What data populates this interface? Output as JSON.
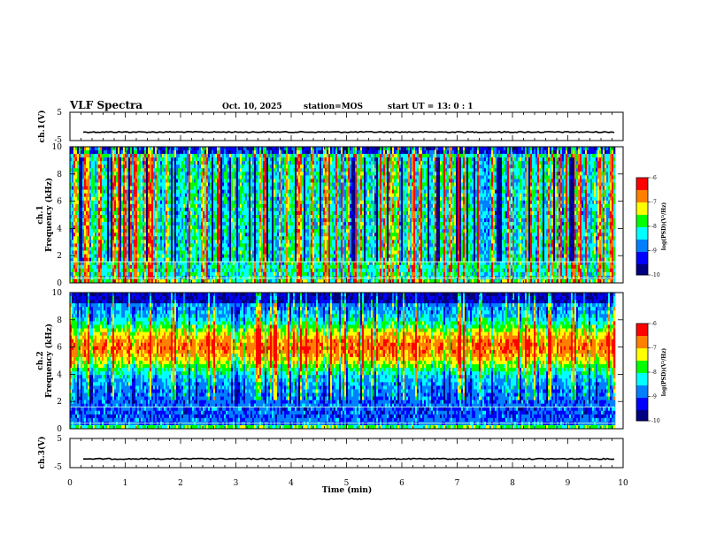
{
  "header": {
    "title": "VLF Spectra",
    "date": "Oct. 10, 2025",
    "station": "station=MOS",
    "start_ut": "start  UT =   13: 0  : 1"
  },
  "chart_data": [
    {
      "type": "line",
      "name": "ch1-waveform",
      "ylabel": "ch.1(V)",
      "ylim": [
        -5,
        5
      ],
      "yticks": [
        "5",
        "-5"
      ],
      "baseline_value": -2
    },
    {
      "type": "heatmap",
      "name": "ch1-spectrogram",
      "ylabel_channel": "ch.1",
      "ylabel": "Frequency (kHz)",
      "ylim": [
        0,
        10
      ],
      "yticks": [
        "0",
        "2",
        "4",
        "6",
        "8",
        "10"
      ],
      "colorbar": {
        "label": "log(PSD)(V²/Hz)",
        "range": [
          -10,
          -6
        ],
        "ticks": [
          "-6",
          "-7",
          "-8",
          "-9",
          "-10"
        ]
      }
    },
    {
      "type": "heatmap",
      "name": "ch2-spectrogram",
      "ylabel_channel": "ch.2",
      "ylabel": "Frequency (kHz)",
      "ylim": [
        0,
        10
      ],
      "yticks": [
        "0",
        "2",
        "4",
        "6",
        "8",
        "10"
      ],
      "colorbar": {
        "label": "log(PSD)(V²/Hz)",
        "range": [
          -10,
          -6
        ],
        "ticks": [
          "-6",
          "-7",
          "-8",
          "-9",
          "-10"
        ]
      }
    },
    {
      "type": "line",
      "name": "ch3-waveform",
      "ylabel": "ch.3(V)",
      "ylim": [
        -5,
        5
      ],
      "yticks": [
        "5",
        "-5"
      ],
      "baseline_value": -2
    }
  ],
  "xaxis": {
    "label": "Time  (min)",
    "xlim": [
      0,
      10
    ],
    "ticks": [
      "0",
      "1",
      "2",
      "3",
      "4",
      "5",
      "6",
      "7",
      "8",
      "9",
      "10"
    ],
    "data_end": 9.85
  },
  "colors": {
    "colormap": [
      "#000080",
      "#0000ff",
      "#0080ff",
      "#00ffff",
      "#00ff00",
      "#ffff00",
      "#ff8000",
      "#ff0000",
      "#ffffff"
    ],
    "axis": "#000000",
    "trace": "#000000"
  }
}
